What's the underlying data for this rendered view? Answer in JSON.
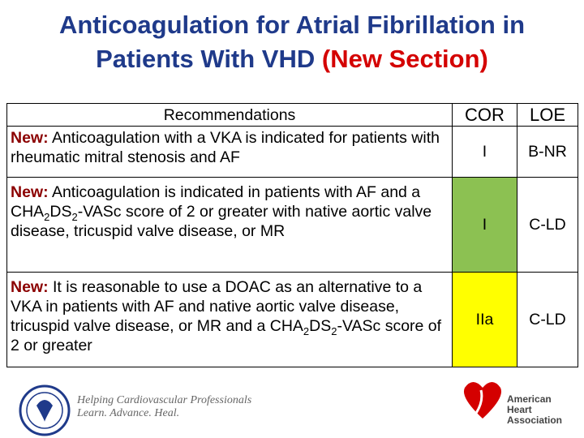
{
  "header": {
    "title_lines": [
      "Anticoagulation for Atrial Fibrillation in",
      "Patients With VHD"
    ],
    "title_highlight": "(New Section)"
  },
  "table": {
    "columns": [
      "Recommendations",
      "COR",
      "LOE"
    ],
    "rows": [
      {
        "prefix": "New:",
        "text_parts": [
          "Anticoagulation with a VKA is indicated for patients with rheumatic mitral stenosis and AF"
        ],
        "cor": "I",
        "loe": "B-NR",
        "cor_color": "#ffffff"
      },
      {
        "prefix": "New:",
        "text_parts": [
          "Anticoagulation is indicated in patients with AF and a CHA",
          "2",
          "DS",
          "2",
          "-VASc score of 2 or greater with native aortic valve disease, tricuspid valve disease, or MR"
        ],
        "cor": "I",
        "loe": "C-LD",
        "cor_color": "#8cc152"
      },
      {
        "prefix": "New:",
        "text_parts": [
          "It is reasonable to use a DOAC as an alternative to a VKA in patients with AF and native aortic valve disease, tricuspid valve disease, or MR and a CHA",
          "2",
          "DS",
          "2",
          "-VASc score of 2 or greater"
        ],
        "cor": "IIa",
        "loe": "C-LD",
        "cor_color": "#ffff00"
      }
    ]
  },
  "footer": {
    "acc_lines": [
      "Helping Cardiovascular Professionals",
      "Learn. Advance. Heal."
    ],
    "aha_lines": [
      "American",
      "Heart",
      "Association"
    ]
  }
}
